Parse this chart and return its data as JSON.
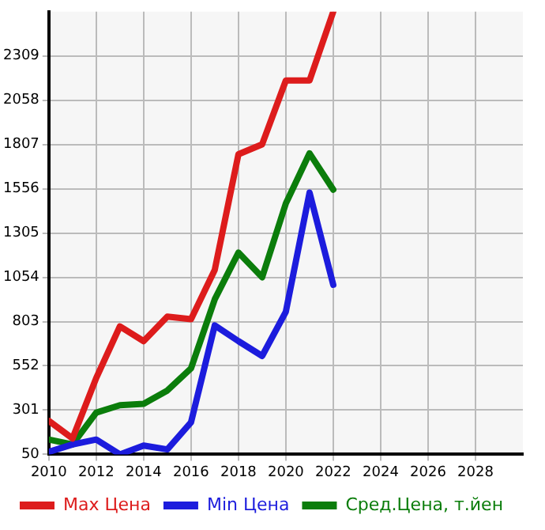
{
  "chart_data": {
    "type": "line",
    "x": [
      2010,
      2011,
      2012,
      2013,
      2014,
      2015,
      2016,
      2017,
      2018,
      2019,
      2020,
      2021,
      2022
    ],
    "series": [
      {
        "name": "Max Цена",
        "color": "#dd1c1c",
        "values": [
          240,
          140,
          483,
          776,
          692,
          831,
          817,
          1096,
          1752,
          1808,
          2170,
          2170,
          2560
        ]
      },
      {
        "name": "Min Цена",
        "color": "#1c1cdd",
        "values": [
          64,
          106,
          134,
          50,
          100,
          78,
          232,
          781,
          692,
          608,
          859,
          1534,
          1012
        ]
      },
      {
        "name": "Сред.Цена, т.йен",
        "color": "#0b7d0b",
        "values": [
          134,
          106,
          287,
          329,
          337,
          412,
          538,
          929,
          1194,
          1054,
          1473,
          1757,
          1551
        ]
      }
    ],
    "xlim": [
      2010,
      2030
    ],
    "xticks": [
      2010,
      2012,
      2014,
      2016,
      2018,
      2020,
      2022,
      2024,
      2026,
      2028
    ],
    "ylim": [
      50,
      2560
    ],
    "yticks": [
      50,
      301,
      552,
      803,
      1054,
      1305,
      1556,
      1807,
      2058,
      2309
    ],
    "grid": true,
    "legend": "bottom",
    "marker": "none",
    "line_style": "solid"
  }
}
